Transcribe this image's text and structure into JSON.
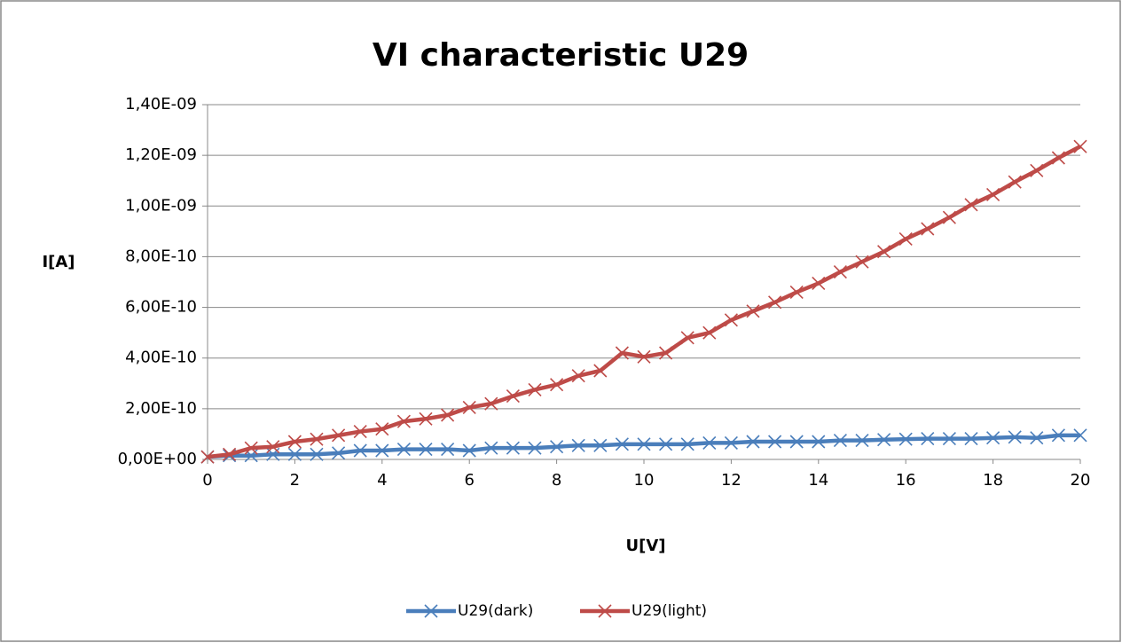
{
  "chart_data": {
    "type": "line",
    "title": "VI characteristic U29",
    "xlabel": "U[V]",
    "ylabel": "I[A]",
    "x": [
      0,
      0.5,
      1,
      1.5,
      2,
      2.5,
      3,
      3.5,
      4,
      4.5,
      5,
      5.5,
      6,
      6.5,
      7,
      7.5,
      8,
      8.5,
      9,
      9.5,
      10,
      10.5,
      11,
      11.5,
      12,
      12.5,
      13,
      13.5,
      14,
      14.5,
      15,
      15.5,
      16,
      16.5,
      17,
      17.5,
      18,
      18.5,
      19,
      19.5,
      20
    ],
    "series": [
      {
        "name": "U29(dark)",
        "color": "#4a7ebb",
        "values": [
          1e-11,
          1.5e-11,
          1.5e-11,
          2e-11,
          2e-11,
          2e-11,
          2.5e-11,
          3.5e-11,
          3.5e-11,
          4e-11,
          4e-11,
          4e-11,
          3.5e-11,
          4.5e-11,
          4.5e-11,
          4.5e-11,
          5e-11,
          5.5e-11,
          5.5e-11,
          6e-11,
          6e-11,
          6e-11,
          6e-11,
          6.5e-11,
          6.5e-11,
          7e-11,
          7e-11,
          7e-11,
          7e-11,
          7.5e-11,
          7.5e-11,
          7.8e-11,
          8e-11,
          8.2e-11,
          8.2e-11,
          8.2e-11,
          8.5e-11,
          8.8e-11,
          8.5e-11,
          9.5e-11,
          9.5e-11
        ]
      },
      {
        "name": "U29(light)",
        "color": "#be4b48",
        "values": [
          1e-11,
          2e-11,
          4.5e-11,
          5e-11,
          7e-11,
          8e-11,
          9.5e-11,
          1.1e-10,
          1.2e-10,
          1.5e-10,
          1.6e-10,
          1.75e-10,
          2.05e-10,
          2.2e-10,
          2.5e-10,
          2.75e-10,
          2.95e-10,
          3.3e-10,
          3.5e-10,
          4.2e-10,
          4.05e-10,
          4.2e-10,
          4.8e-10,
          5e-10,
          5.5e-10,
          5.85e-10,
          6.2e-10,
          6.6e-10,
          6.95e-10,
          7.4e-10,
          7.8e-10,
          8.2e-10,
          8.7e-10,
          9.1e-10,
          9.55e-10,
          1.005e-09,
          1.045e-09,
          1.095e-09,
          1.14e-09,
          1.19e-09,
          1.235e-09
        ]
      }
    ],
    "xlim": [
      0,
      20
    ],
    "xticks": [
      0,
      2,
      4,
      6,
      8,
      10,
      12,
      14,
      16,
      18,
      20
    ],
    "ylim": [
      0,
      1.4e-09
    ],
    "yticks": [
      {
        "value": 0,
        "label": "0,00E+00"
      },
      {
        "value": 2e-10,
        "label": "2,00E-10"
      },
      {
        "value": 4e-10,
        "label": "4,00E-10"
      },
      {
        "value": 6e-10,
        "label": "6,00E-10"
      },
      {
        "value": 8e-10,
        "label": "8,00E-10"
      },
      {
        "value": 1e-09,
        "label": "1,00E-09"
      },
      {
        "value": 1.2e-09,
        "label": "1,20E-09"
      },
      {
        "value": 1.4e-09,
        "label": "1,40E-09"
      }
    ],
    "grid": true,
    "legend": "bottom"
  }
}
